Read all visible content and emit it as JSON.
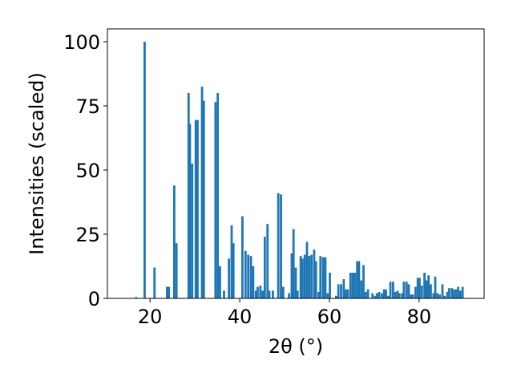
{
  "chart_data": {
    "type": "bar",
    "title": "",
    "xlabel": "2θ (°)",
    "ylabel": "Intensities (scaled)",
    "xlim": [
      10.5,
      94.5
    ],
    "ylim": [
      0,
      105
    ],
    "grid": false,
    "legend": "none",
    "bar_color": "#1f77b4",
    "xticks": [
      20,
      40,
      60,
      80
    ],
    "yticks": [
      0,
      25,
      50,
      75,
      100
    ],
    "bar_width": 0.5,
    "series": [
      {
        "x": [
          16.9,
          18.8,
          21.0,
          23.8,
          24.2,
          25.4,
          25.9,
          28.6,
          28.9,
          29.4,
          30.2,
          30.6,
          31.6,
          32.0,
          34.6,
          35.1,
          35.6,
          36.5,
          37.6,
          38.2,
          38.6,
          40.6,
          41.3,
          41.9,
          42.5,
          43.0,
          43.6,
          44.0,
          44.6,
          45.1,
          45.6,
          46.2,
          46.6,
          47.4,
          48.6,
          49.2,
          49.7,
          51.0,
          51.6,
          52.0,
          52.5,
          52.9,
          53.6,
          54.0,
          54.5,
          55.0,
          55.5,
          56.0,
          56.6,
          57.0,
          57.6,
          58.0,
          58.6,
          59.1,
          59.6,
          60.1,
          61.5,
          62.0,
          62.6,
          63.2,
          63.6,
          64.1,
          64.7,
          65.2,
          65.7,
          66.2,
          66.6,
          67.1,
          67.6,
          68.1,
          68.6,
          69.6,
          70.2,
          70.6,
          71.1,
          71.7,
          72.2,
          72.6,
          73.1,
          73.6,
          74.2,
          74.7,
          75.2,
          75.6,
          76.2,
          76.6,
          77.2,
          77.7,
          78.2,
          78.6,
          79.2,
          79.7,
          80.1,
          80.6,
          81.2,
          81.7,
          82.1,
          82.6,
          83.2,
          83.6,
          84.1,
          84.6,
          85.2,
          85.7,
          86.3,
          86.7,
          87.3,
          87.7,
          88.2,
          88.7,
          89.2,
          89.7
        ],
        "values": [
          0.5,
          100,
          12,
          4.5,
          4.5,
          44,
          21.5,
          80,
          68,
          52.5,
          69.5,
          69.5,
          82.5,
          77,
          76.5,
          80,
          12.5,
          3,
          15.5,
          28.5,
          21.5,
          32,
          18.5,
          17,
          16.5,
          12.5,
          3,
          4.5,
          5,
          3,
          24,
          29,
          3,
          3,
          41,
          40.5,
          4.5,
          2,
          17.5,
          27,
          12,
          3,
          16.5,
          15.5,
          17,
          22,
          16.5,
          17,
          19,
          14.5,
          2.5,
          16.5,
          16,
          16,
          2,
          10,
          1,
          5.5,
          5.5,
          7.5,
          3.5,
          3.5,
          10,
          10,
          10,
          14.5,
          14.5,
          7,
          13,
          2.5,
          3.5,
          2,
          1,
          2,
          2.5,
          2,
          3.5,
          3.5,
          1,
          6.5,
          6.5,
          2.5,
          3,
          2,
          2,
          6.5,
          6.5,
          5.5,
          1.5,
          1.5,
          4.5,
          8,
          8,
          5,
          10,
          7,
          9,
          5.5,
          2,
          8.5,
          2,
          1.5,
          5.5,
          1,
          2.5,
          4,
          4,
          3.5,
          3.5,
          4.5,
          3,
          4.5
        ]
      }
    ]
  }
}
